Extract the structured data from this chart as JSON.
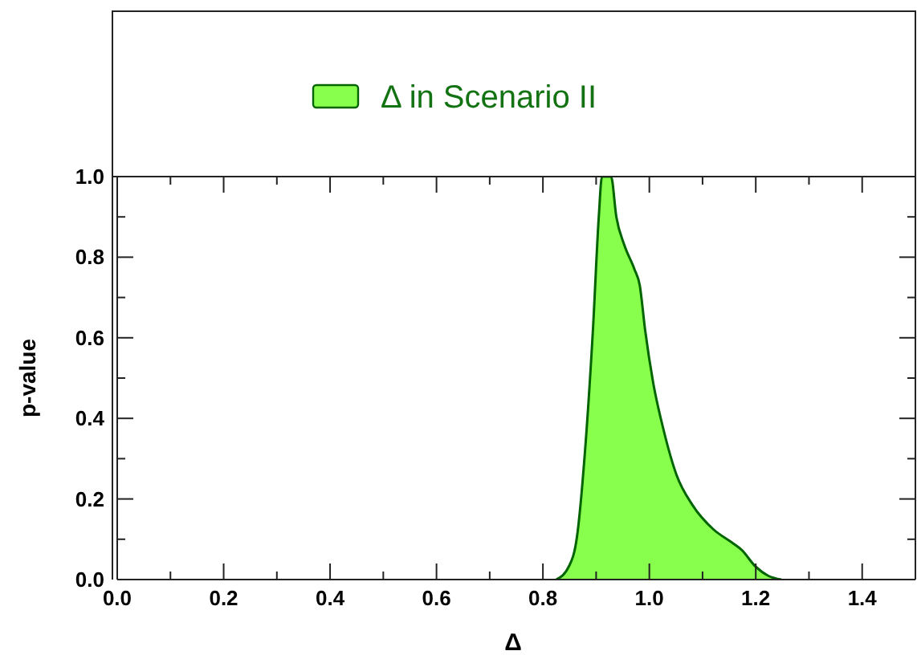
{
  "chart_data": {
    "type": "area",
    "xlabel": "Δ",
    "ylabel": "p-value",
    "legend": "top",
    "x": [
      0.825,
      0.849,
      0.864,
      0.879,
      0.894,
      0.905,
      0.911,
      0.92,
      0.928,
      0.938,
      0.953,
      0.972,
      0.982,
      0.992,
      1.007,
      1.027,
      1.051,
      1.081,
      1.12,
      1.155,
      1.174,
      1.199,
      1.224,
      1.248
    ],
    "series": [
      {
        "name": "Δ in Scenario II",
        "color": "#88ff4d",
        "values": [
          0,
          0.033,
          0.106,
          0.317,
          0.62,
          0.9,
          1.0,
          1.0,
          1.0,
          0.9,
          0.83,
          0.77,
          0.73,
          0.62,
          0.49,
          0.37,
          0.26,
          0.185,
          0.125,
          0.092,
          0.073,
          0.033,
          0.009,
          0
        ]
      }
    ],
    "xlim": [
      0,
      1.5
    ],
    "xticks": [
      {
        "value": 0,
        "label": "0.0"
      },
      {
        "value": 0.1,
        "label": null
      },
      {
        "value": 0.2,
        "label": "0.2"
      },
      {
        "value": 0.3,
        "label": null
      },
      {
        "value": 0.4,
        "label": "0.4"
      },
      {
        "value": 0.5,
        "label": null
      },
      {
        "value": 0.6,
        "label": "0.6"
      },
      {
        "value": 0.7,
        "label": null
      },
      {
        "value": 0.8,
        "label": "0.8"
      },
      {
        "value": 0.9,
        "label": null
      },
      {
        "value": 1.0,
        "label": "1.0"
      },
      {
        "value": 1.1,
        "label": null
      },
      {
        "value": 1.2,
        "label": "1.2"
      },
      {
        "value": 1.3,
        "label": null
      },
      {
        "value": 1.4,
        "label": "1.4"
      }
    ],
    "ylim": [
      0,
      1
    ],
    "yticks": [
      {
        "value": 0,
        "label": "0.0"
      },
      {
        "value": 0.1,
        "label": null
      },
      {
        "value": 0.2,
        "label": "0.2"
      },
      {
        "value": 0.3,
        "label": null
      },
      {
        "value": 0.4,
        "label": "0.4"
      },
      {
        "value": 0.5,
        "label": null
      },
      {
        "value": 0.6,
        "label": "0.6"
      },
      {
        "value": 0.7,
        "label": null
      },
      {
        "value": 0.8,
        "label": "0.8"
      },
      {
        "value": 0.9,
        "label": null
      },
      {
        "value": 1.0,
        "label": "1.0"
      }
    ]
  }
}
